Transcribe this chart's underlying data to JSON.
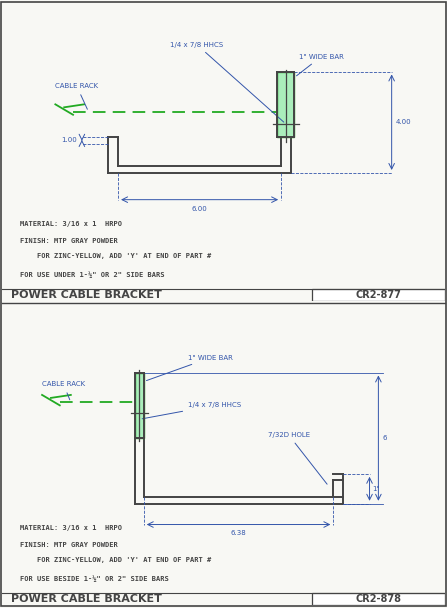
{
  "bg_color": "#f8f8f4",
  "line_color_blue": "#3355aa",
  "line_color_green": "#22aa22",
  "line_color_dark": "#444444",
  "fill_green": "#aaeebb",
  "panel1": {
    "title": "POWER CABLE BRACKET",
    "part_num": "CR2-877",
    "material": "MATERIAL: 3/16 x 1  HRPO",
    "finish1": "FINISH: MTP GRAY POWDER",
    "finish2": "    FOR ZINC-YELLOW, ADD 'Y' AT END OF PART #",
    "use": "FOR USE UNDER 1-½\" OR 2\" SIDE BARS"
  },
  "panel2": {
    "title": "POWER CABLE BRACKET",
    "part_num": "CR2-878",
    "material": "MATERIAL: 3/16 x 1  HRPO",
    "finish1": "FINISH: MTP GRAY POWDER",
    "finish2": "    FOR ZINC-YELLOW, ADD 'Y' AT END OF PART #",
    "use": "FOR USE BESIDE 1-½\" OR 2\" SIDE BARS"
  }
}
